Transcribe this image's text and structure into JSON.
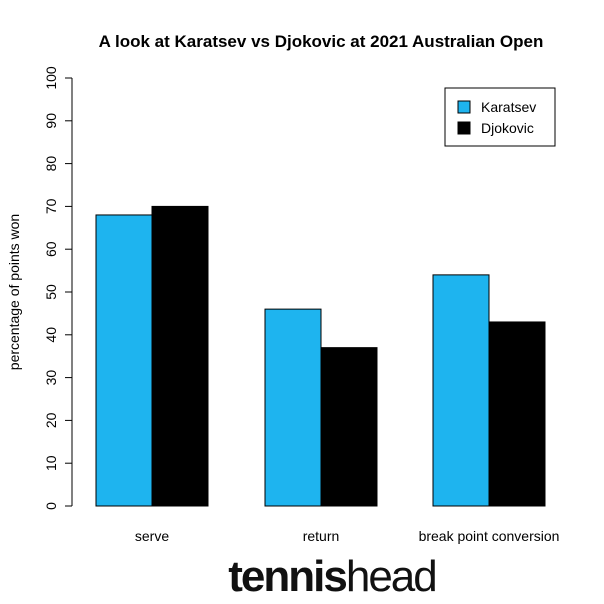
{
  "chart_data": {
    "type": "bar",
    "title": "A look at Karatsev vs Djokovic at 2021 Australian Open",
    "xlabel": "",
    "ylabel": "percentage of points won",
    "categories": [
      "serve",
      "return",
      "break point conversion"
    ],
    "series": [
      {
        "name": "Karatsev",
        "values": [
          68,
          46,
          54
        ],
        "color": "#1eb4ef"
      },
      {
        "name": "Djokovic",
        "values": [
          70,
          37,
          43
        ],
        "color": "#000000"
      }
    ],
    "ylim": [
      0,
      100
    ],
    "yticks": [
      0,
      10,
      20,
      30,
      40,
      50,
      60,
      70,
      80,
      90,
      100
    ],
    "grid": false,
    "legend_position": "top-right"
  },
  "branding": {
    "logo_part1": "tennis",
    "logo_part2": "head"
  }
}
